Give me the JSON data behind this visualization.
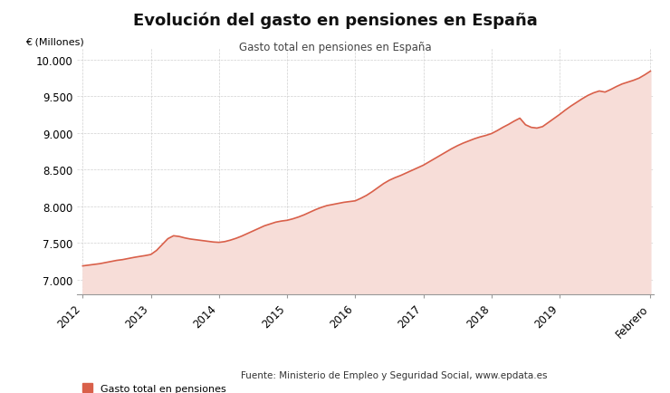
{
  "title": "Evolución del gasto en pensiones en España",
  "subtitle": "Gasto total en pensiones en España",
  "ylabel": "€ (Millones)",
  "legend_label": "Gasto total en pensiones",
  "source_text": "Fuente: Ministerio de Empleo y Seguridad Social, www.epdata.es",
  "line_color": "#d9604a",
  "fill_color": "#f7ddd8",
  "background_color": "#ffffff",
  "grid_color": "#d0d0d0",
  "ylim": [
    6800,
    10150
  ],
  "yticks": [
    7000,
    7500,
    8000,
    8500,
    9000,
    9500,
    10000
  ],
  "xtick_labels": [
    "2012",
    "2013",
    "2014",
    "2015",
    "2016",
    "2017",
    "2018",
    "2019",
    "Febrero"
  ],
  "data": [
    7190,
    7200,
    7210,
    7220,
    7235,
    7250,
    7265,
    7275,
    7290,
    7305,
    7318,
    7330,
    7345,
    7400,
    7480,
    7560,
    7600,
    7590,
    7570,
    7555,
    7545,
    7535,
    7525,
    7515,
    7510,
    7520,
    7540,
    7565,
    7595,
    7630,
    7665,
    7700,
    7735,
    7760,
    7785,
    7800,
    7810,
    7830,
    7855,
    7885,
    7920,
    7955,
    7985,
    8010,
    8025,
    8040,
    8055,
    8065,
    8075,
    8110,
    8150,
    8200,
    8255,
    8310,
    8355,
    8390,
    8420,
    8455,
    8490,
    8525,
    8560,
    8605,
    8650,
    8695,
    8740,
    8785,
    8825,
    8860,
    8890,
    8920,
    8945,
    8965,
    8990,
    9030,
    9075,
    9115,
    9160,
    9200,
    9110,
    9075,
    9065,
    9085,
    9140,
    9195,
    9250,
    9310,
    9365,
    9415,
    9465,
    9510,
    9545,
    9570,
    9555,
    9590,
    9630,
    9665,
    9690,
    9715,
    9745,
    9790,
    9840
  ],
  "x_tick_indices": [
    0,
    12,
    24,
    36,
    48,
    60,
    72,
    84,
    100
  ]
}
